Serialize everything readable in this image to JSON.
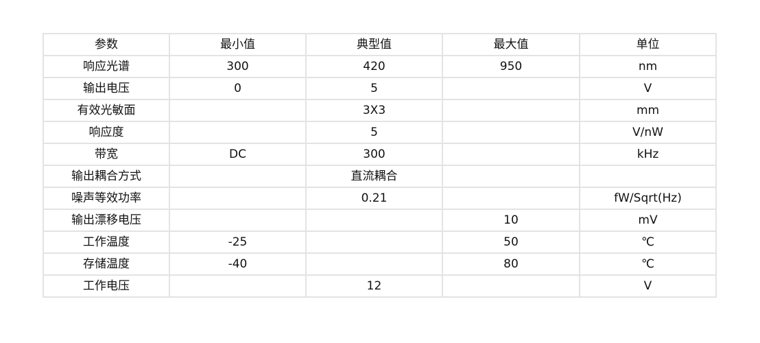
{
  "table": {
    "headers": [
      "参数",
      "最小值",
      "典型值",
      "最大值",
      "单位"
    ],
    "rows": [
      [
        "响应光谱",
        "300",
        "420",
        "950",
        "nm"
      ],
      [
        "输出电压",
        "0",
        "5",
        "",
        "V"
      ],
      [
        "有效光敏面",
        "",
        "3X3",
        "",
        "mm"
      ],
      [
        "响应度",
        "",
        "5",
        "",
        "V/nW"
      ],
      [
        "带宽",
        "DC",
        "300",
        "",
        "kHz"
      ],
      [
        "输出耦合方式",
        "",
        "直流耦合",
        "",
        ""
      ],
      [
        "噪声等效功率",
        "",
        "0.21",
        "",
        "fW/Sqrt(Hz)"
      ],
      [
        "输出漂移电压",
        "",
        "",
        "10",
        "mV"
      ],
      [
        "工作温度",
        "-25",
        "",
        "50",
        "℃"
      ],
      [
        "存储温度",
        "-40",
        "",
        "80",
        "℃"
      ],
      [
        "工作电压",
        "",
        "12",
        "",
        "V"
      ]
    ]
  }
}
